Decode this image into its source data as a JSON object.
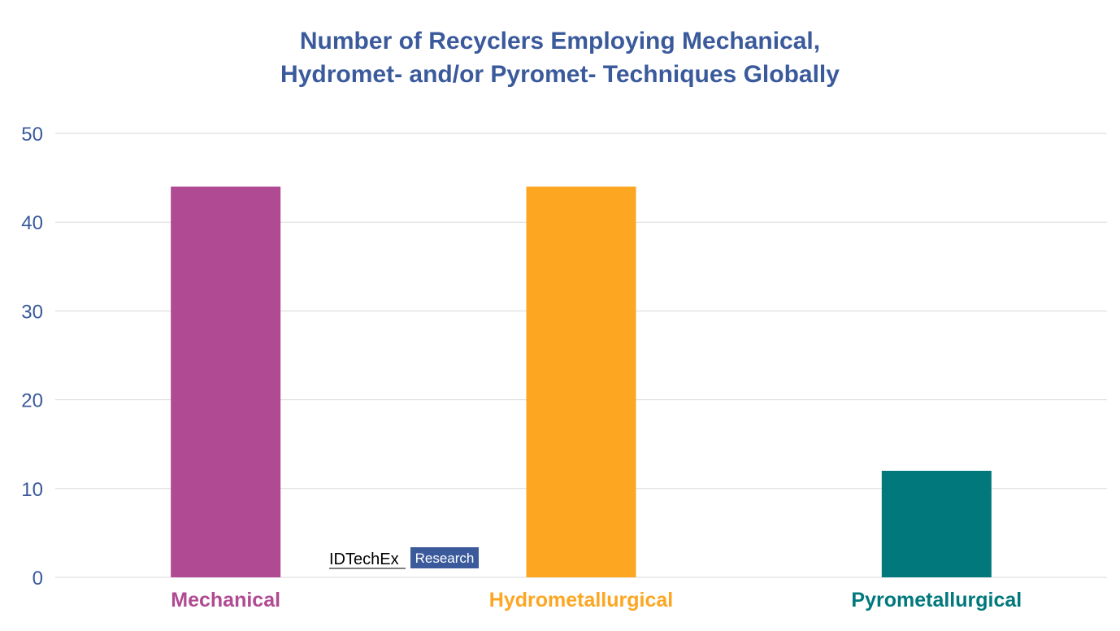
{
  "chart_data": {
    "type": "bar",
    "title_lines": [
      "Number of Recyclers Employing Mechanical,",
      "Hydromet- and/or Pyromet- Techniques Globally"
    ],
    "categories": [
      "Mechanical",
      "Hydrometallurgical",
      "Pyrometallurgical"
    ],
    "values": [
      44,
      44,
      12
    ],
    "colors": [
      "#b04a92",
      "#fca622",
      "#00787c"
    ],
    "ylim": [
      0,
      50
    ],
    "yticks": [
      0,
      10,
      20,
      30,
      40,
      50
    ],
    "grid": true,
    "legend": "none"
  },
  "logo": {
    "name": "IDTechEx",
    "tag": "Research",
    "tag_color": "#3a5a9c"
  }
}
